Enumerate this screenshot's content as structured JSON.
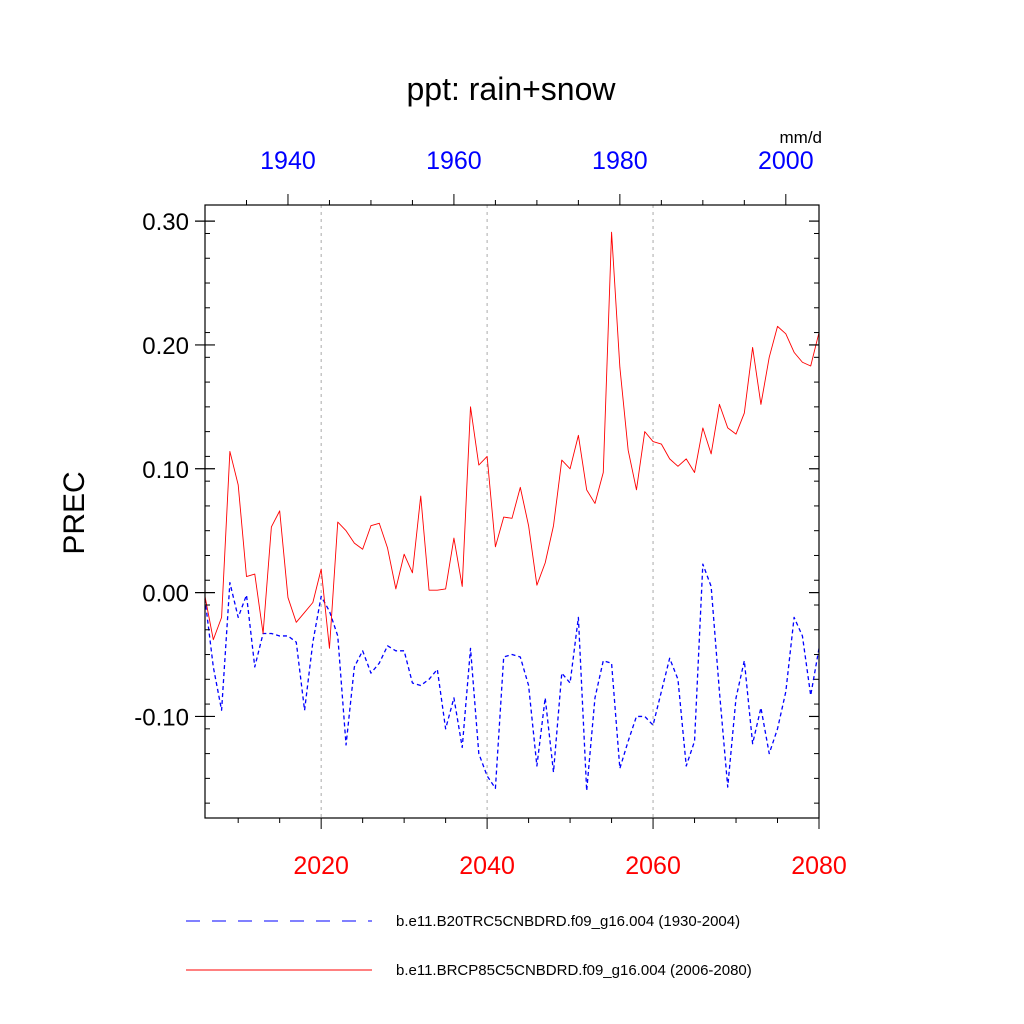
{
  "chart_data": {
    "type": "line",
    "title": "ppt: rain+snow",
    "ylabel": "PREC",
    "units_label": "mm/d",
    "ylim": [
      -0.182,
      0.313
    ],
    "yticks": [
      {
        "value": 0.3,
        "label": "0.30"
      },
      {
        "value": 0.2,
        "label": "0.20"
      },
      {
        "value": 0.1,
        "label": "0.10"
      },
      {
        "value": 0.0,
        "label": "0.00"
      },
      {
        "value": -0.1,
        "label": "-0.10"
      }
    ],
    "bottom_axis": {
      "color": "#ff0000",
      "range": [
        2006,
        2080
      ],
      "ticks": [
        {
          "value": 2020,
          "label": "2020"
        },
        {
          "value": 2040,
          "label": "2040"
        },
        {
          "value": 2060,
          "label": "2060"
        },
        {
          "value": 2080,
          "label": "2080"
        }
      ]
    },
    "top_axis": {
      "color": "#0000ff",
      "range": [
        1930,
        2004
      ],
      "ticks": [
        {
          "value": 1940,
          "label": "1940"
        },
        {
          "value": 1960,
          "label": "1960"
        },
        {
          "value": 1980,
          "label": "1980"
        },
        {
          "value": 2000,
          "label": "2000"
        }
      ]
    },
    "gridlines_x": [
      2020,
      2040,
      2060
    ],
    "legend_position": "bottom",
    "series": [
      {
        "name": "b.e11.B20TRC5CNBDRD.f09_g16.004 (1930-2004)",
        "axis": "top",
        "color": "#0000ff",
        "style": "dashed",
        "x": [
          1930,
          1931,
          1932,
          1933,
          1934,
          1935,
          1936,
          1937,
          1938,
          1939,
          1940,
          1941,
          1942,
          1943,
          1944,
          1945,
          1946,
          1947,
          1948,
          1949,
          1950,
          1951,
          1952,
          1953,
          1954,
          1955,
          1956,
          1957,
          1958,
          1959,
          1960,
          1961,
          1962,
          1963,
          1964,
          1965,
          1966,
          1967,
          1968,
          1969,
          1970,
          1971,
          1972,
          1973,
          1974,
          1975,
          1976,
          1977,
          1978,
          1979,
          1980,
          1981,
          1982,
          1983,
          1984,
          1985,
          1986,
          1987,
          1988,
          1989,
          1990,
          1991,
          1992,
          1993,
          1994,
          1995,
          1996,
          1997,
          1998,
          1999,
          2000,
          2001,
          2002,
          2003,
          2004
        ],
        "y": [
          -0.005,
          -0.06,
          -0.095,
          0.008,
          -0.02,
          -0.002,
          -0.06,
          -0.033,
          -0.033,
          -0.035,
          -0.035,
          -0.04,
          -0.095,
          -0.04,
          -0.003,
          -0.015,
          -0.035,
          -0.123,
          -0.06,
          -0.047,
          -0.065,
          -0.057,
          -0.043,
          -0.047,
          -0.047,
          -0.073,
          -0.075,
          -0.07,
          -0.062,
          -0.11,
          -0.085,
          -0.125,
          -0.045,
          -0.13,
          -0.148,
          -0.158,
          -0.052,
          -0.05,
          -0.052,
          -0.075,
          -0.14,
          -0.085,
          -0.145,
          -0.065,
          -0.073,
          -0.02,
          -0.16,
          -0.085,
          -0.055,
          -0.057,
          -0.142,
          -0.12,
          -0.1,
          -0.1,
          -0.107,
          -0.08,
          -0.053,
          -0.07,
          -0.14,
          -0.12,
          0.023,
          0.005,
          -0.08,
          -0.157,
          -0.085,
          -0.055,
          -0.122,
          -0.093,
          -0.13,
          -0.11,
          -0.08,
          -0.02,
          -0.035,
          -0.083,
          -0.045
        ]
      },
      {
        "name": "b.e11.BRCP85C5CNBDRD.f09_g16.004 (2006-2080)",
        "axis": "bottom",
        "color": "#ff0000",
        "style": "solid",
        "x": [
          2006,
          2007,
          2008,
          2009,
          2010,
          2011,
          2012,
          2013,
          2014,
          2015,
          2016,
          2017,
          2018,
          2019,
          2020,
          2021,
          2022,
          2023,
          2024,
          2025,
          2026,
          2027,
          2028,
          2029,
          2030,
          2031,
          2032,
          2033,
          2034,
          2035,
          2036,
          2037,
          2038,
          2039,
          2040,
          2041,
          2042,
          2043,
          2044,
          2045,
          2046,
          2047,
          2048,
          2049,
          2050,
          2051,
          2052,
          2053,
          2054,
          2055,
          2056,
          2057,
          2058,
          2059,
          2060,
          2061,
          2062,
          2063,
          2064,
          2065,
          2066,
          2067,
          2068,
          2069,
          2070,
          2071,
          2072,
          2073,
          2074,
          2075,
          2076,
          2077,
          2078,
          2079,
          2080
        ],
        "y": [
          -0.003,
          -0.038,
          -0.02,
          0.114,
          0.087,
          0.013,
          0.015,
          -0.033,
          0.053,
          0.066,
          -0.004,
          -0.024,
          -0.016,
          -0.008,
          0.019,
          -0.045,
          0.057,
          0.05,
          0.04,
          0.035,
          0.054,
          0.056,
          0.036,
          0.003,
          0.031,
          0.016,
          0.078,
          0.002,
          0.002,
          0.003,
          0.044,
          0.005,
          0.15,
          0.103,
          0.11,
          0.037,
          0.061,
          0.06,
          0.085,
          0.054,
          0.006,
          0.024,
          0.054,
          0.107,
          0.1,
          0.127,
          0.083,
          0.072,
          0.097,
          0.291,
          0.182,
          0.115,
          0.083,
          0.13,
          0.122,
          0.12,
          0.108,
          0.102,
          0.108,
          0.097,
          0.133,
          0.112,
          0.152,
          0.133,
          0.128,
          0.145,
          0.198,
          0.152,
          0.19,
          0.215,
          0.209,
          0.194,
          0.186,
          0.183,
          0.21
        ]
      }
    ]
  }
}
